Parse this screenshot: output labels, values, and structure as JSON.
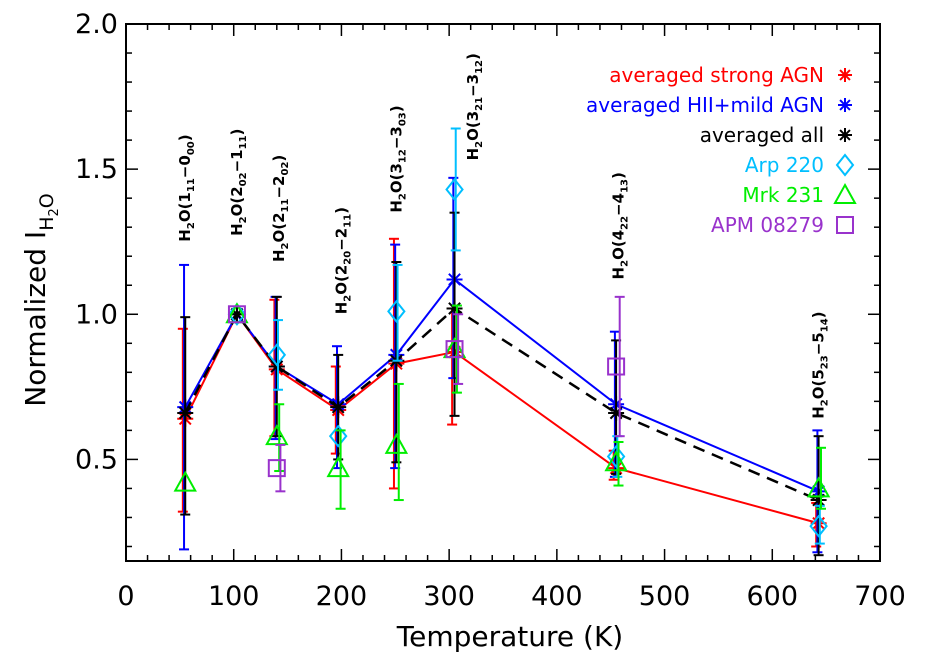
{
  "chart_data": {
    "type": "line",
    "title": "",
    "xlabel": "Temperature (K)",
    "ylabel_main": "Normalized  I",
    "ylabel_sub": "H",
    "ylabel_subsub": "2",
    "ylabel_subtail": "O",
    "xlim": [
      0,
      700
    ],
    "ylim": [
      0.15,
      2.0
    ],
    "xticks": [
      {
        "v": 0,
        "t": "0"
      },
      {
        "v": 100,
        "t": "100"
      },
      {
        "v": 200,
        "t": "200"
      },
      {
        "v": 300,
        "t": "300"
      },
      {
        "v": 400,
        "t": "400"
      },
      {
        "v": 500,
        "t": "500"
      },
      {
        "v": 600,
        "t": "600"
      },
      {
        "v": 700,
        "t": "700"
      }
    ],
    "yticks": [
      {
        "v": 0.5,
        "t": "0.5"
      },
      {
        "v": 1.0,
        "t": "1.0"
      },
      {
        "v": 1.5,
        "t": "1.5"
      },
      {
        "v": 2.0,
        "t": "2.0"
      }
    ],
    "transition_labels": [
      {
        "x": 55,
        "y": 1.25,
        "pre": "H",
        "s1": "2",
        "mid": "O(1",
        "s2": "11",
        "mid2": "−0",
        "s3": "00",
        "post": ")"
      },
      {
        "x": 103,
        "y": 1.27,
        "pre": "H",
        "s1": "2",
        "mid": "O(2",
        "s2": "02",
        "mid2": "−1",
        "s3": "11",
        "post": ")"
      },
      {
        "x": 142,
        "y": 1.18,
        "pre": "H",
        "s1": "2",
        "mid": "O(2",
        "s2": "11",
        "mid2": "−2",
        "s3": "02",
        "post": ")"
      },
      {
        "x": 200,
        "y": 1.0,
        "pre": "H",
        "s1": "2",
        "mid": "O(2",
        "s2": "20",
        "mid2": "−2",
        "s3": "11",
        "post": ")"
      },
      {
        "x": 251,
        "y": 1.35,
        "pre": "H",
        "s1": "2",
        "mid": "O(3",
        "s2": "12",
        "mid2": "−3",
        "s3": "03",
        "post": ")"
      },
      {
        "x": 322,
        "y": 1.53,
        "pre": "H",
        "s1": "2",
        "mid": "O(3",
        "s2": "21",
        "mid2": "−3",
        "s3": "12",
        "post": ")"
      },
      {
        "x": 457,
        "y": 1.12,
        "pre": "H",
        "s1": "2",
        "mid": "O(4",
        "s2": "22",
        "mid2": "−4",
        "s3": "13",
        "post": ")"
      },
      {
        "x": 643,
        "y": 0.64,
        "pre": "H",
        "s1": "2",
        "mid": "O(5",
        "s2": "23",
        "mid2": "−5",
        "s3": "14",
        "post": ")"
      }
    ],
    "series": [
      {
        "name": "averaged strong AGN",
        "color": "#ff0000",
        "marker": "asterisk",
        "line": "solid",
        "x": [
          55,
          103,
          140,
          197,
          251,
          305,
          455,
          643
        ],
        "y": [
          0.64,
          1.0,
          0.81,
          0.67,
          0.83,
          0.87,
          0.47,
          0.28
        ],
        "err_lo": [
          0.32,
          1.0,
          0.58,
          0.52,
          0.4,
          0.62,
          0.43,
          0.2
        ],
        "err_hi": [
          0.95,
          1.0,
          1.05,
          0.82,
          1.26,
          1.02,
          0.53,
          0.35
        ]
      },
      {
        "name": "averaged HII+mild AGN",
        "color": "#0000ff",
        "marker": "asterisk",
        "line": "solid",
        "x": [
          55,
          103,
          140,
          197,
          251,
          305,
          455,
          643
        ],
        "y": [
          0.68,
          1.0,
          0.82,
          0.69,
          0.86,
          1.12,
          0.69,
          0.39
        ],
        "err_lo": [
          0.19,
          1.0,
          0.57,
          0.47,
          0.47,
          0.78,
          0.44,
          0.18
        ],
        "err_hi": [
          1.17,
          1.0,
          1.06,
          0.89,
          1.24,
          1.47,
          0.94,
          0.6
        ]
      },
      {
        "name": "averaged all",
        "color": "#000000",
        "marker": "asterisk",
        "line": "dashed",
        "x": [
          55,
          103,
          140,
          197,
          251,
          305,
          455,
          643
        ],
        "y": [
          0.66,
          1.0,
          0.82,
          0.68,
          0.84,
          1.02,
          0.66,
          0.36
        ],
        "err_lo": [
          0.31,
          1.0,
          0.58,
          0.5,
          0.49,
          0.65,
          0.45,
          0.17
        ],
        "err_hi": [
          0.99,
          1.0,
          1.06,
          0.86,
          1.18,
          1.35,
          0.91,
          0.58
        ]
      },
      {
        "name": "Arp 220",
        "color": "#00bfff",
        "marker": "diamond",
        "line": "none",
        "x": [
          103,
          140,
          197,
          251,
          305,
          455,
          643
        ],
        "y": [
          1.0,
          0.86,
          0.58,
          1.01,
          1.43,
          0.51,
          0.27
        ],
        "err_lo": [
          1.0,
          0.74,
          0.58,
          0.84,
          1.22,
          0.44,
          0.21
        ],
        "err_hi": [
          1.0,
          0.98,
          0.58,
          1.17,
          1.64,
          0.58,
          0.34
        ]
      },
      {
        "name": "Mrk 231",
        "color": "#00ee00",
        "marker": "triangle",
        "line": "none",
        "x": [
          55,
          103,
          140,
          197,
          251,
          305,
          455,
          643
        ],
        "y": [
          0.42,
          1.0,
          0.58,
          0.47,
          0.55,
          0.88,
          0.49,
          0.4
        ],
        "err_lo": [
          0.42,
          1.0,
          0.46,
          0.33,
          0.36,
          0.73,
          0.41,
          0.33
        ],
        "err_hi": [
          0.42,
          1.0,
          0.69,
          0.6,
          0.76,
          1.03,
          0.56,
          0.54
        ]
      },
      {
        "name": "APM 08279",
        "color": "#9932cc",
        "marker": "square",
        "line": "none",
        "x": [
          103,
          140,
          305,
          455
        ],
        "y": [
          1.0,
          0.47,
          0.88,
          0.82
        ],
        "err_lo": [
          1.0,
          0.39,
          0.76,
          0.58
        ],
        "err_hi": [
          1.0,
          0.55,
          1.0,
          1.06
        ]
      }
    ],
    "legend_position": "top-right"
  }
}
